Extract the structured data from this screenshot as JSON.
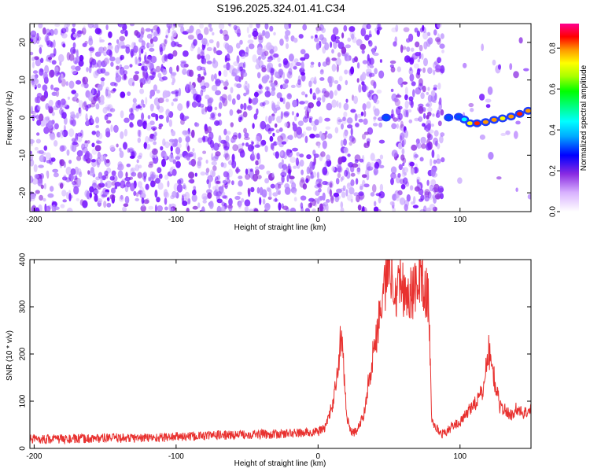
{
  "title": "S196.2025.324.01.41.C34",
  "colors": {
    "spectrogram_palette": [
      "#ffffff",
      "#8a2be2",
      "#0000ff",
      "#00ffff",
      "#00ff00",
      "#ffff00",
      "#ff8000",
      "#ff0000",
      "#ff00ff"
    ],
    "snr_line": "#e8312f",
    "axis": "#000000"
  },
  "chart_data": [
    {
      "type": "heatmap",
      "title": "S196.2025.324.01.41.C34",
      "xlabel": "Height of straight line (km)",
      "ylabel": "Frequency (Hz)",
      "xlim": [
        -203,
        150
      ],
      "ylim": [
        -25,
        25
      ],
      "xticks": [
        -200,
        -100,
        0,
        100
      ],
      "yticks": [
        -20,
        -10,
        0,
        10,
        20
      ],
      "colorbar": {
        "label": "Normalized spectral amplitude",
        "range": [
          0.0,
          0.92
        ],
        "ticks": [
          0.0,
          0.2,
          0.4,
          0.6,
          0.8
        ]
      },
      "blank_intervals_km": [
        [
          45,
          52
        ],
        [
          88,
          98
        ]
      ],
      "high_amplitude_track": [
        {
          "x": 48,
          "y": 0.0,
          "value": 0.3
        },
        {
          "x": 92,
          "y": 0.0,
          "value": 0.35
        },
        {
          "x": 99,
          "y": 0.2,
          "value": 0.4
        },
        {
          "x": 103,
          "y": -0.5,
          "value": 0.45
        },
        {
          "x": 107,
          "y": -1.5,
          "value": 0.7
        },
        {
          "x": 112,
          "y": -1.5,
          "value": 0.85
        },
        {
          "x": 118,
          "y": -1.2,
          "value": 0.75
        },
        {
          "x": 124,
          "y": -0.6,
          "value": 0.8
        },
        {
          "x": 130,
          "y": -0.2,
          "value": 0.7
        },
        {
          "x": 136,
          "y": 0.3,
          "value": 0.8
        },
        {
          "x": 142,
          "y": 1.0,
          "value": 0.85
        },
        {
          "x": 148,
          "y": 1.8,
          "value": 0.8
        }
      ]
    },
    {
      "type": "line",
      "xlabel": "Height of straight line (km)",
      "ylabel": "SNR (10 * v/v)",
      "xlim": [
        -203,
        150
      ],
      "ylim": [
        0,
        400
      ],
      "xticks": [
        -200,
        -100,
        0,
        100
      ],
      "yticks": [
        0,
        100,
        200,
        300,
        400
      ],
      "series": [
        {
          "x": [
            -203,
            -190,
            -170,
            -150,
            -130,
            -110,
            -100,
            -90,
            -80,
            -70,
            -60,
            -50,
            -40,
            -30,
            -20,
            -10,
            0,
            5,
            10,
            14,
            16,
            18,
            20,
            24,
            28,
            32,
            36,
            40,
            44,
            46,
            48,
            50,
            52,
            55,
            58,
            62,
            66,
            70,
            72,
            74,
            76,
            78,
            80,
            84,
            88,
            92,
            96,
            100,
            104,
            108,
            112,
            116,
            120,
            124,
            128,
            132,
            136,
            140,
            144,
            150
          ],
          "y": [
            20,
            20,
            20,
            22,
            22,
            23,
            25,
            25,
            27,
            28,
            28,
            30,
            30,
            30,
            32,
            33,
            35,
            45,
            90,
            160,
            240,
            180,
            70,
            30,
            40,
            70,
            150,
            220,
            300,
            330,
            360,
            400,
            370,
            340,
            360,
            320,
            330,
            340,
            380,
            340,
            330,
            310,
            60,
            40,
            30,
            40,
            50,
            55,
            70,
            90,
            100,
            120,
            210,
            150,
            90,
            80,
            70,
            85,
            75,
            80
          ]
        }
      ]
    }
  ]
}
